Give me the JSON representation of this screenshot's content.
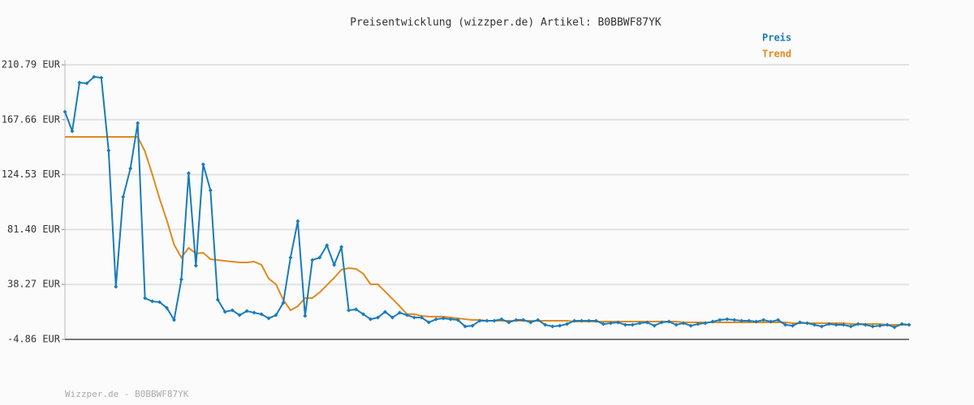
{
  "chart_data": {
    "type": "line",
    "title": "Preisentwicklung (wizzper.de) Artikel: B0BBWF87YK",
    "footer": "Wizzper.de - B0BBWF87YK",
    "ylim": [
      -4.86,
      210.79
    ],
    "yticks": [
      {
        "value": 210.79,
        "label": "210.79 EUR"
      },
      {
        "value": 167.66,
        "label": "167.66 EUR"
      },
      {
        "value": 124.53,
        "label": "124.53 EUR"
      },
      {
        "value": 81.4,
        "label": "81.40 EUR"
      },
      {
        "value": 38.27,
        "label": "38.27 EUR"
      },
      {
        "value": -4.86,
        "label": "-4.86 EUR"
      }
    ],
    "grid": true,
    "legend": "top-right",
    "series": [
      {
        "name": "Preis",
        "color": "#1a7bb9",
        "markers": true,
        "values": [
          173.9,
          158.6,
          196.8,
          196.2,
          201.3,
          200.6,
          143.4,
          36.5,
          107.1,
          129.4,
          165.0,
          27.6,
          25.0,
          24.4,
          19.9,
          10.4,
          42.2,
          125.6,
          53.0,
          132.6,
          112.2,
          26.3,
          16.8,
          18.0,
          14.2,
          17.4,
          16.1,
          14.9,
          11.7,
          14.2,
          23.8,
          59.4,
          88.0,
          13.6,
          57.5,
          59.4,
          69.0,
          53.7,
          67.7,
          18.0,
          18.7,
          14.9,
          11.0,
          12.3,
          16.8,
          12.3,
          16.1,
          14.2,
          12.3,
          12.3,
          8.5,
          11.0,
          11.7,
          11.0,
          10.4,
          5.3,
          5.9,
          9.8,
          9.8,
          9.8,
          11.0,
          8.5,
          10.4,
          10.4,
          8.5,
          10.4,
          6.6,
          5.3,
          5.9,
          7.2,
          9.8,
          9.8,
          9.8,
          9.8,
          7.2,
          7.9,
          8.5,
          6.6,
          6.6,
          7.9,
          8.5,
          5.9,
          8.5,
          9.1,
          6.6,
          7.9,
          5.9,
          7.2,
          7.9,
          9.1,
          10.4,
          11.0,
          10.4,
          9.8,
          9.8,
          9.1,
          10.4,
          9.1,
          10.4,
          6.6,
          5.9,
          8.5,
          7.9,
          6.6,
          5.3,
          7.2,
          6.6,
          6.6,
          5.3,
          7.2,
          6.6,
          5.3,
          5.9,
          6.6,
          4.7,
          7.2,
          6.6
        ]
      },
      {
        "name": "Trend",
        "color": "#e08a1e",
        "markers": false,
        "values": [
          154.2,
          154.2,
          154.2,
          154.2,
          154.2,
          154.2,
          154.2,
          154.2,
          154.2,
          154.2,
          154.2,
          142.7,
          124.9,
          105.8,
          88.7,
          69.6,
          59.4,
          67.0,
          62.6,
          63.2,
          58.1,
          57.5,
          56.8,
          56.2,
          55.6,
          55.6,
          56.2,
          53.7,
          42.9,
          38.4,
          26.3,
          18.0,
          21.2,
          27.6,
          27.6,
          32.0,
          37.8,
          43.5,
          49.9,
          51.1,
          50.5,
          46.7,
          38.4,
          38.4,
          32.7,
          27.0,
          21.2,
          14.9,
          14.9,
          13.6,
          13.0,
          13.0,
          13.0,
          12.3,
          11.7,
          11.0,
          10.4,
          10.4,
          9.8,
          9.8,
          9.8,
          9.8,
          9.8,
          9.8,
          9.8,
          9.8,
          9.8,
          9.8,
          9.8,
          9.8,
          9.1,
          9.1,
          9.1,
          9.1,
          9.1,
          9.1,
          9.1,
          9.1,
          9.1,
          9.1,
          9.1,
          9.1,
          9.1,
          9.1,
          9.1,
          8.5,
          8.5,
          8.5,
          8.5,
          8.5,
          8.5,
          8.5,
          8.5,
          8.5,
          8.5,
          8.5,
          8.5,
          8.5,
          8.5,
          8.5,
          7.9,
          7.9,
          7.9,
          7.9,
          7.9,
          7.9,
          7.9,
          7.9,
          7.2,
          7.2,
          7.2,
          7.2,
          7.2,
          6.6,
          6.6,
          6.6,
          6.6
        ]
      }
    ]
  }
}
